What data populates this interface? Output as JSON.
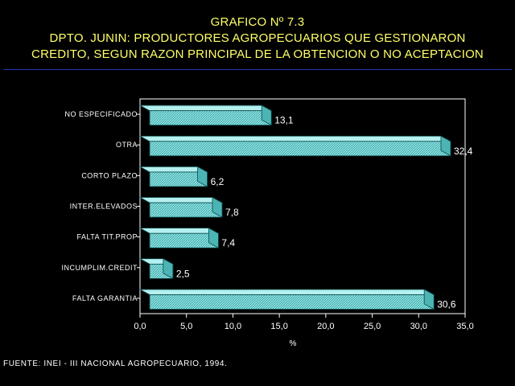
{
  "title": {
    "line1": "GRAFICO Nº 7.3",
    "line2": "DPTO. JUNIN: PRODUCTORES AGROPECUARIOS QUE GESTIONARON",
    "line3": "CREDITO, SEGUN RAZON PRINCIPAL DE LA OBTENCION O NO ACEPTACION"
  },
  "source": "FUENTE: INEI - III NACIONAL AGROPECUARIO, 1994.",
  "colors": {
    "background": "#000000",
    "title": "#ffff66",
    "rule": "#2233bb",
    "text": "#ffffff",
    "bar_face": "#8fe6e6",
    "bar_side": "#4cb4b4",
    "bar_top": "#b4f0f0",
    "bar_edge": "#0a4a4a",
    "axis": "#ffffff"
  },
  "chart_data": {
    "type": "bar",
    "orientation": "horizontal",
    "categories": [
      "NO ESPECIFICADO",
      "OTRA",
      "CORTO PLAZO",
      "INTER.ELEVADOS",
      "FALTA TIT.PROP",
      "INCUMPLIM.CREDIT",
      "FALTA GARANTIA"
    ],
    "values": [
      13.1,
      32.4,
      6.2,
      7.8,
      7.4,
      2.5,
      30.6
    ],
    "value_labels": [
      "13,1",
      "32,4",
      "6,2",
      "7,8",
      "7,4",
      "2,5",
      "30,6"
    ],
    "xlabel": "%",
    "xlim": [
      0,
      35
    ],
    "xticks": [
      0,
      5,
      10,
      15,
      20,
      25,
      30,
      35
    ],
    "xtick_labels": [
      "0,0",
      "5,0",
      "10,0",
      "15,0",
      "20,0",
      "25,0",
      "30,0",
      "35,0"
    ],
    "grid": false,
    "legend": "none",
    "style": "3d"
  }
}
